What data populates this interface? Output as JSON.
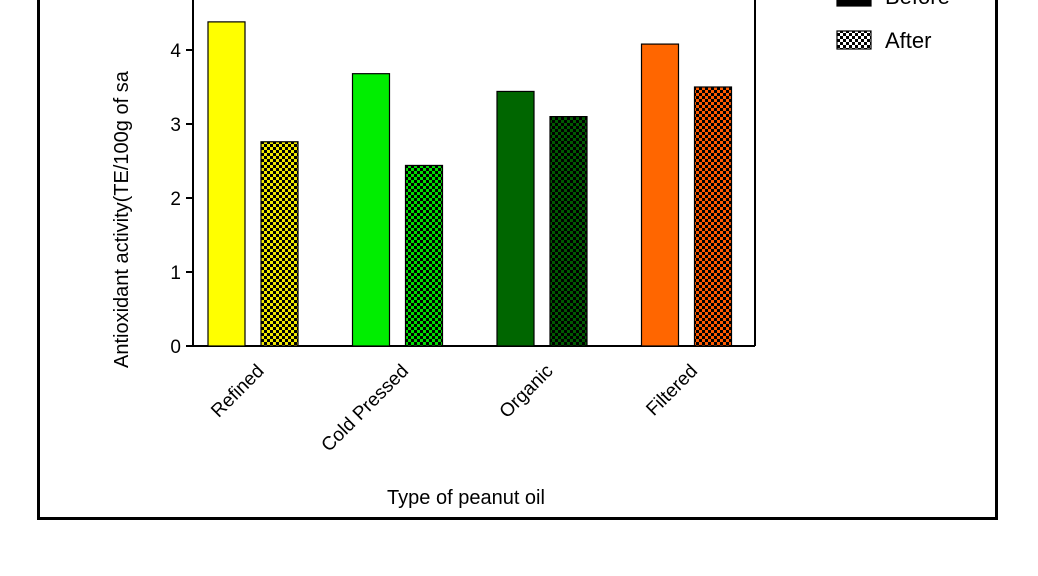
{
  "chart_data": {
    "type": "bar",
    "title": "",
    "xlabel": "Type of peanut oil",
    "ylabel": "Antioxidant activity(TE/100g of sa",
    "categories": [
      "Refined",
      "Cold Pressed",
      "Organic",
      "Filtered"
    ],
    "series": [
      {
        "name": "Before",
        "values": [
          4.38,
          3.68,
          3.44,
          4.08
        ]
      },
      {
        "name": "After",
        "values": [
          2.76,
          2.44,
          3.1,
          3.5
        ]
      }
    ],
    "ylim": [
      0,
      4.6
    ],
    "yticks": [
      0,
      1,
      2,
      3,
      4
    ],
    "grid": false,
    "legend_position": "top-right",
    "colors": {
      "before": [
        "#ffff00",
        "#00ee00",
        "#006600",
        "#ff6600"
      ],
      "after": [
        "#f0e800",
        "#00dd00",
        "#005a00",
        "#ff5a00"
      ]
    }
  }
}
